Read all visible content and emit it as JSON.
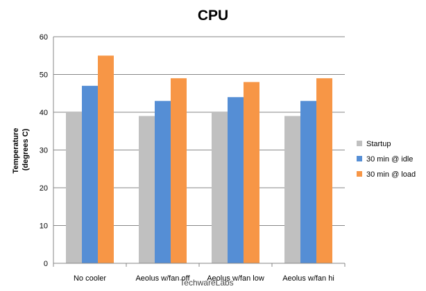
{
  "chart_data": {
    "type": "bar",
    "title": "CPU",
    "ylabel": "Temperature (degrees C)",
    "ylabel_lines": [
      "Temperature",
      "(degrees C)"
    ],
    "xlabel": "",
    "ylim": [
      0,
      60
    ],
    "yticks": [
      0,
      10,
      20,
      30,
      40,
      50,
      60
    ],
    "grid": true,
    "legend_position": "right",
    "categories": [
      "No cooler",
      "Aeolus w/fan off",
      "Aeolus w/fan low",
      "Aeolus w/fan hi"
    ],
    "series": [
      {
        "name": "Startup",
        "color": "#c0c0c0",
        "values": [
          40,
          39,
          40,
          39
        ]
      },
      {
        "name": "30 min @ idle",
        "color": "#558ed5",
        "values": [
          47,
          43,
          44,
          43
        ]
      },
      {
        "name": "30 min @ load",
        "color": "#f79646",
        "values": [
          55,
          49,
          48,
          49
        ]
      }
    ]
  },
  "watermark": "TechwareLabs"
}
